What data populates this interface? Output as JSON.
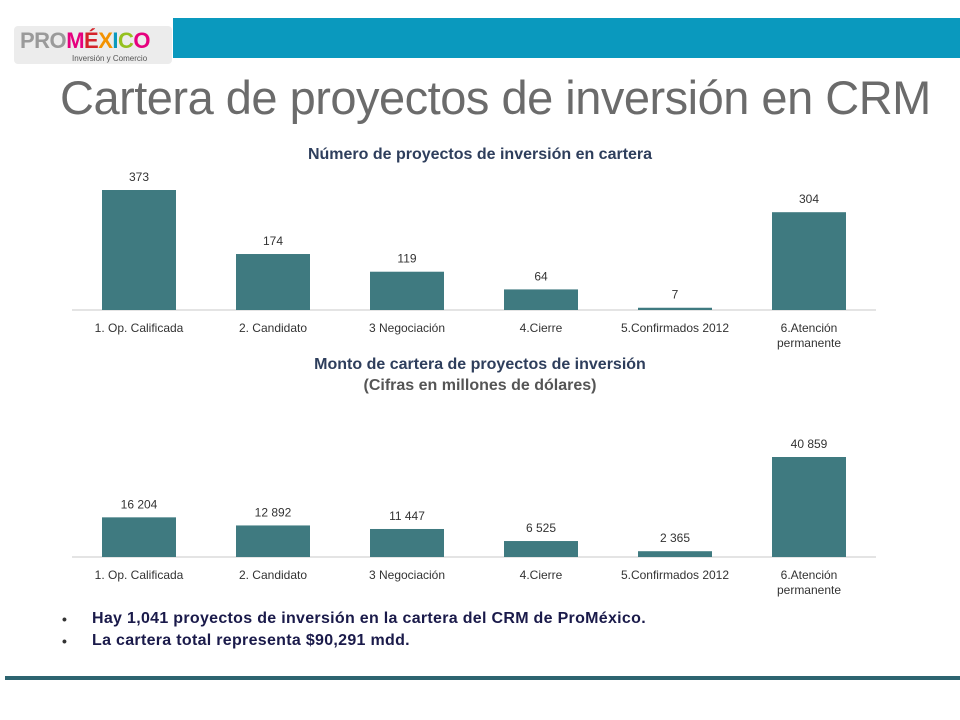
{
  "header": {
    "logo_pro": "PRO",
    "logo_mexico": "MÉXICO",
    "logo_sub": "Inversión y Comercio",
    "accent_color": "#0a99be"
  },
  "page_title": "Cartera de proyectos de inversión en CRM",
  "chart_data": [
    {
      "type": "bar",
      "title": "Número de proyectos de inversión en cartera",
      "categories": [
        "1. Op. Calificada",
        "2. Candidato",
        "3 Negociación",
        "4.Cierre",
        "5.Confirmados 2012",
        "6.Atención permanente"
      ],
      "values": [
        373,
        174,
        119,
        64,
        7,
        304
      ],
      "value_labels": [
        "373",
        "174",
        "119",
        "64",
        "7",
        "304"
      ],
      "bar_color": "#3f7a80",
      "ylim": [
        0,
        373
      ],
      "grid": false
    },
    {
      "type": "bar",
      "title": "Monto de cartera de proyectos de inversión",
      "subtitle": "(Cifras en millones de dólares)",
      "categories": [
        "1. Op. Calificada",
        "2. Candidato",
        "3 Negociación",
        "4.Cierre",
        "5.Confirmados 2012",
        "6.Atención permanente"
      ],
      "values": [
        16204,
        12892,
        11447,
        6525,
        2365,
        40859
      ],
      "value_labels": [
        "16 204",
        "12 892",
        "11 447",
        "6 525",
        "2 365",
        "40 859"
      ],
      "bar_color": "#3f7a80",
      "ylim": [
        0,
        40859
      ],
      "grid": false
    }
  ],
  "bullets": [
    "Hay 1,041 proyectos de inversión en la cartera del CRM de ProMéxico.",
    "La cartera total representa $90,291 mdd."
  ]
}
